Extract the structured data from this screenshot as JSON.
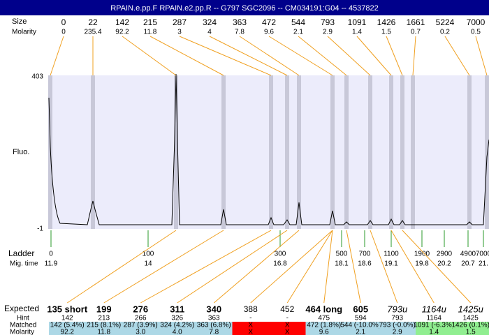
{
  "title": "RPAIN.e.pp.F  RPAIN.e2.pp.R -- G797 SGC2096 -- CM034191:G04 -- 4537822",
  "labels": {
    "size": "Size",
    "molarity": "Molarity",
    "fluo": "Fluo.",
    "ladder": "Ladder",
    "mig_time": "Mig. time",
    "expected": "Expected",
    "hint": "Hint",
    "matched": "Matched",
    "molarity_bottom": "Molarity"
  },
  "y_axis": {
    "top": "403",
    "bottom": "-1"
  },
  "peaks": [
    {
      "size": "0",
      "molarity": "0"
    },
    {
      "size": "22",
      "molarity": "235.4"
    },
    {
      "size": "142",
      "molarity": "92.2"
    },
    {
      "size": "215",
      "molarity": "11.8"
    },
    {
      "size": "287",
      "molarity": "3"
    },
    {
      "size": "324",
      "molarity": "4"
    },
    {
      "size": "363",
      "molarity": "7.8"
    },
    {
      "size": "472",
      "molarity": "9.6"
    },
    {
      "size": "544",
      "molarity": "2.1"
    },
    {
      "size": "793",
      "molarity": "2.9"
    },
    {
      "size": "1091",
      "molarity": "1.4"
    },
    {
      "size": "1426",
      "molarity": "1.5"
    },
    {
      "size": "1661",
      "molarity": "0.7"
    },
    {
      "size": "5224",
      "molarity": "0.2"
    },
    {
      "size": "7000",
      "molarity": "0.5"
    }
  ],
  "ladder": [
    {
      "size": "0",
      "time": "11.9"
    },
    {
      "size": "100",
      "time": "14"
    },
    {
      "size": "300",
      "time": "16.8"
    },
    {
      "size": "500",
      "time": "18.1"
    },
    {
      "size": "700",
      "time": "18.6"
    },
    {
      "size": "1100",
      "time": "19.1"
    },
    {
      "size": "1900",
      "time": "19.8"
    },
    {
      "size": "2900",
      "time": "20.2"
    },
    {
      "size": "4900",
      "time": "20.7"
    },
    {
      "size": "7000",
      "time": "21."
    }
  ],
  "expected": [
    {
      "expected": "135 short",
      "hint": "142",
      "matched": "142 (5.4%)",
      "molarity": "92.2",
      "color": "#add8e6"
    },
    {
      "expected": "199",
      "hint": "213",
      "matched": "215 (8.1%)",
      "molarity": "11.8",
      "color": "#add8e6"
    },
    {
      "expected": "276",
      "hint": "266",
      "matched": "287 (3.9%)",
      "molarity": "3.0",
      "color": "#add8e6"
    },
    {
      "expected": "311",
      "hint": "326",
      "matched": "324 (4.2%)",
      "molarity": "4.0",
      "color": "#add8e6"
    },
    {
      "expected": "340",
      "hint": "363",
      "matched": "363 (6.8%)",
      "molarity": "7.8",
      "color": "#add8e6"
    },
    {
      "expected": "388",
      "hint": "-",
      "matched": "X",
      "molarity": "X",
      "color": "#ff0000"
    },
    {
      "expected": "452",
      "hint": "-",
      "matched": "X",
      "molarity": "X",
      "color": "#ff0000"
    },
    {
      "expected": "464 long",
      "hint": "475",
      "matched": "472 (1.8%)",
      "molarity": "9.6",
      "color": "#add8e6"
    },
    {
      "expected": "605",
      "hint": "594",
      "matched": "544 (-10.0%)",
      "molarity": "2.1",
      "color": "#add8e6"
    },
    {
      "expected": "793u",
      "hint": "793",
      "matched": "793 (-0.0%)",
      "molarity": "2.9",
      "color": "#add8e6"
    },
    {
      "expected": "1164u",
      "hint": "1164",
      "matched": "1091 (-6.3%)",
      "molarity": "1.4",
      "color": "#90ee90"
    },
    {
      "expected": "1425u",
      "hint": "1425",
      "matched": "1426 (0.1%)",
      "molarity": "1.5",
      "color": "#90ee90"
    }
  ]
}
